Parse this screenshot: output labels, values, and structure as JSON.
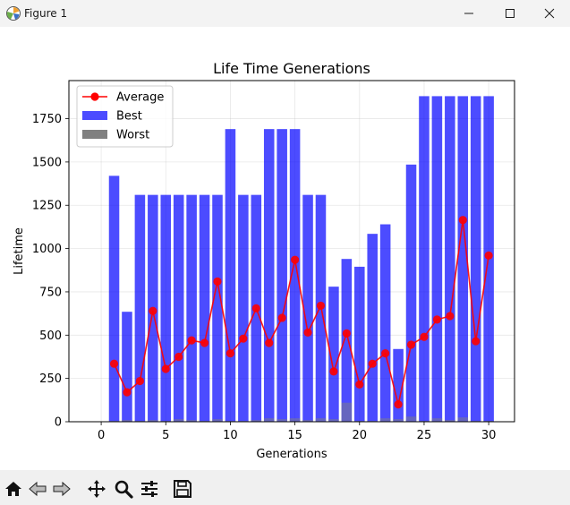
{
  "window": {
    "title": "Figure 1",
    "icon": "matplotlib-figure-icon",
    "controls": [
      "minimize-icon",
      "maximize-icon",
      "close-icon"
    ]
  },
  "toolbar": {
    "buttons": [
      "home-icon",
      "back-arrow-icon",
      "forward-arrow-icon",
      "pan-icon",
      "zoom-icon",
      "configure-subplots-icon",
      "save-icon"
    ]
  },
  "chart_data": {
    "type": "bar",
    "title": "Life Time Generations",
    "xlabel": "Generations",
    "ylabel": "Lifetime",
    "xlim": [
      -2.5,
      32
    ],
    "ylim": [
      0,
      1970
    ],
    "xticks": [
      0,
      5,
      10,
      15,
      20,
      25,
      30
    ],
    "yticks": [
      0,
      250,
      500,
      750,
      1000,
      1250,
      1500,
      1750
    ],
    "grid": true,
    "legend_position": "upper-left",
    "x": [
      1,
      2,
      3,
      4,
      5,
      6,
      7,
      8,
      9,
      10,
      11,
      12,
      13,
      14,
      15,
      16,
      17,
      18,
      19,
      20,
      21,
      22,
      23,
      24,
      25,
      26,
      27,
      28,
      29,
      30
    ],
    "series": [
      {
        "name": "Best",
        "kind": "bar",
        "color": "#0000ff",
        "values": [
          1420,
          635,
          1310,
          1310,
          1310,
          1310,
          1310,
          1310,
          1310,
          1690,
          1310,
          1310,
          1690,
          1690,
          1690,
          1310,
          1310,
          780,
          940,
          895,
          1085,
          1140,
          420,
          1485,
          1880,
          1880,
          1880,
          1880,
          1880,
          1880
        ]
      },
      {
        "name": "Worst",
        "kind": "bar",
        "color": "#808080",
        "values": [
          5,
          10,
          5,
          10,
          5,
          15,
          10,
          5,
          15,
          5,
          5,
          10,
          20,
          15,
          20,
          10,
          20,
          15,
          110,
          5,
          5,
          20,
          15,
          30,
          5,
          20,
          10,
          25,
          5,
          5
        ]
      },
      {
        "name": "Average",
        "kind": "line",
        "color": "#ff0000",
        "values": [
          335,
          170,
          235,
          640,
          305,
          375,
          470,
          455,
          810,
          395,
          480,
          655,
          455,
          600,
          935,
          515,
          670,
          290,
          510,
          215,
          335,
          395,
          100,
          445,
          490,
          590,
          610,
          1165,
          465,
          960
        ]
      }
    ]
  }
}
